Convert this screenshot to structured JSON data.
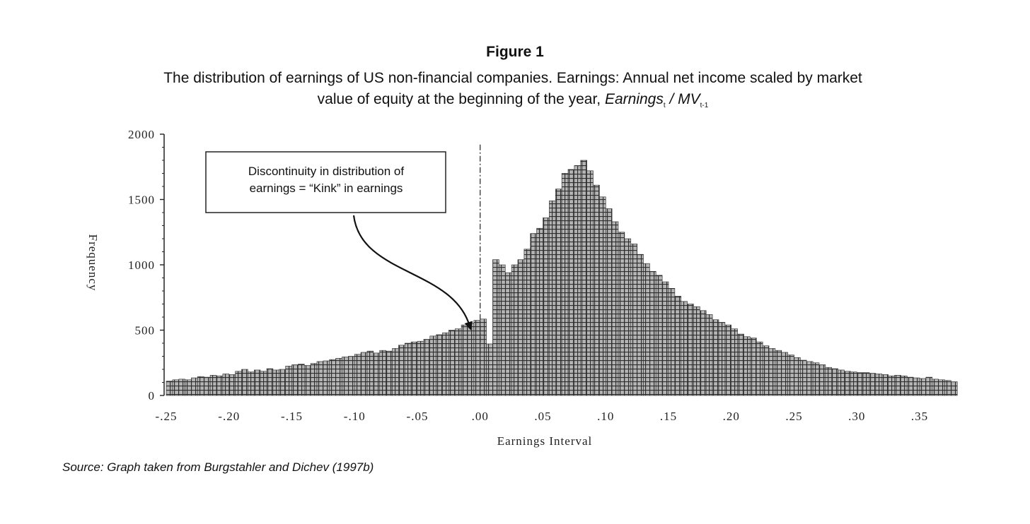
{
  "figure": {
    "title": "Figure 1",
    "caption_line1": "The distribution of earnings of US non-financial companies. Earnings: Annual net income scaled by market",
    "caption_line2_prefix": "value of equity at the beginning of the year, ",
    "caption_var1": "Earnings",
    "caption_sub1": "t",
    "caption_sep": " / ",
    "caption_var2": "MV",
    "caption_sub2": "t-1",
    "source": "Source: Graph taken from Burgstahler and Dichev (1997b)"
  },
  "chart_data": {
    "type": "bar",
    "xlabel": "Earnings Interval",
    "ylabel": "Frequency",
    "xlim": [
      -0.25,
      0.35
    ],
    "ylim": [
      0,
      2000
    ],
    "x_ticks": [
      -0.25,
      -0.2,
      -0.15,
      -0.1,
      -0.05,
      0.0,
      0.05,
      0.1,
      0.15,
      0.2,
      0.25,
      0.3,
      0.35
    ],
    "x_tick_labels": [
      "-.25",
      "-.20",
      "-.15",
      "-.10",
      "-.05",
      ".00",
      ".05",
      ".10",
      ".15",
      ".20",
      ".25",
      ".30",
      ".35"
    ],
    "y_ticks": [
      0,
      500,
      1000,
      1500,
      2000
    ],
    "y_tick_labels": [
      "0",
      "500",
      "1000",
      "1500",
      "2000"
    ],
    "bin_width": 0.005,
    "bin_start": -0.25,
    "values": [
      110,
      120,
      125,
      120,
      135,
      145,
      140,
      155,
      150,
      165,
      160,
      185,
      200,
      180,
      195,
      185,
      205,
      195,
      200,
      225,
      235,
      240,
      230,
      245,
      260,
      265,
      275,
      285,
      295,
      300,
      315,
      330,
      340,
      325,
      345,
      340,
      360,
      385,
      400,
      410,
      415,
      430,
      455,
      465,
      480,
      500,
      510,
      540,
      555,
      575,
      585,
      395,
      1040,
      1000,
      940,
      1000,
      1040,
      1120,
      1240,
      1280,
      1360,
      1490,
      1580,
      1700,
      1730,
      1760,
      1800,
      1720,
      1610,
      1520,
      1430,
      1330,
      1250,
      1200,
      1160,
      1080,
      1010,
      950,
      920,
      870,
      820,
      760,
      720,
      700,
      680,
      650,
      620,
      580,
      560,
      540,
      510,
      470,
      450,
      440,
      410,
      380,
      360,
      345,
      330,
      310,
      290,
      270,
      260,
      250,
      235,
      215,
      205,
      195,
      185,
      180,
      175,
      175,
      170,
      165,
      160,
      150,
      155,
      150,
      140,
      135,
      130,
      140,
      125,
      120,
      115,
      105
    ],
    "annotation": {
      "line1": "Discontinuity in distribution of",
      "line2": "earnings = “Kink” in earnings"
    }
  },
  "colors": {
    "bar_fill": "#a8a8a8",
    "bar_line": "#2a2a2a",
    "axis": "#222222"
  }
}
